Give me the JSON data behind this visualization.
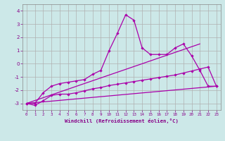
{
  "xlabel": "Windchill (Refroidissement éolien,°C)",
  "bg_color": "#cce8e8",
  "line_color": "#aa00aa",
  "grid_color": "#b0b0b0",
  "xlim": [
    -0.5,
    23.5
  ],
  "ylim": [
    -3.5,
    4.5
  ],
  "yticks": [
    -3,
    -2,
    -1,
    0,
    1,
    2,
    3,
    4
  ],
  "xticks": [
    0,
    1,
    2,
    3,
    4,
    5,
    6,
    7,
    8,
    9,
    10,
    11,
    12,
    13,
    14,
    15,
    16,
    17,
    18,
    19,
    20,
    21,
    22,
    23
  ],
  "curve1_x": [
    0,
    1,
    2,
    3,
    4,
    5,
    6,
    7,
    8,
    9,
    10,
    11,
    12,
    13,
    14,
    15,
    16,
    17,
    18,
    19,
    20,
    21,
    22,
    23
  ],
  "curve1_y": [
    -3.0,
    -3.0,
    -2.2,
    -1.7,
    -1.5,
    -1.4,
    -1.3,
    -1.2,
    -0.8,
    -0.5,
    1.0,
    2.3,
    3.7,
    3.3,
    1.2,
    0.7,
    0.7,
    0.7,
    1.2,
    1.5,
    0.6,
    -0.5,
    -1.7,
    -1.7
  ],
  "curve2_x": [
    0,
    1,
    2,
    3,
    4,
    5,
    6,
    7,
    8,
    9,
    10,
    11,
    12,
    13,
    14,
    15,
    16,
    17,
    18,
    19,
    20,
    21,
    22,
    23
  ],
  "curve2_y": [
    -3.0,
    -3.15,
    -2.8,
    -2.4,
    -2.3,
    -2.3,
    -2.2,
    -2.05,
    -1.9,
    -1.8,
    -1.65,
    -1.55,
    -1.45,
    -1.35,
    -1.25,
    -1.15,
    -1.05,
    -0.95,
    -0.85,
    -0.7,
    -0.55,
    -0.4,
    -0.25,
    -1.7
  ],
  "line1_x": [
    0,
    23
  ],
  "line1_y": [
    -3.0,
    -1.7
  ],
  "line2_x": [
    0,
    21
  ],
  "line2_y": [
    -3.0,
    1.5
  ]
}
